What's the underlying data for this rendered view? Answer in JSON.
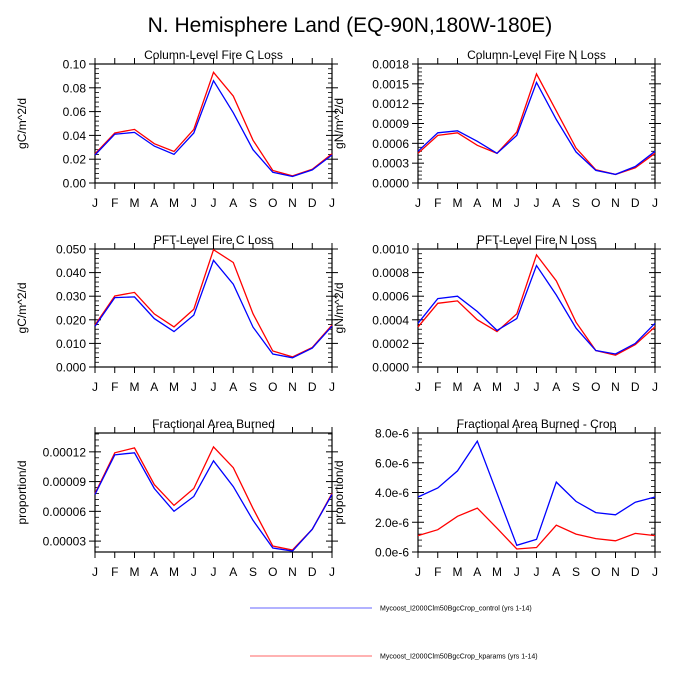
{
  "figure": {
    "title": "N. Hemisphere Land (EQ-90N,180W-180E)"
  },
  "legend": {
    "placement": "bottom-center",
    "entries": [
      {
        "label": "Mycoost_I2000Clm50BgcCrop_control (yrs 1-14)",
        "color": "#0000ff"
      },
      {
        "label": "Mycoost_I2000Clm50BgcCrop_kparams (yrs 1-14)",
        "color": "#ff0000"
      }
    ]
  },
  "chart_data": [
    {
      "type": "line",
      "title": "Column-Level Fire C Loss",
      "xlabel": "",
      "ylabel": "gC/m^2/d",
      "categories": [
        "J",
        "F",
        "M",
        "A",
        "M",
        "J",
        "J",
        "A",
        "S",
        "O",
        "N",
        "D",
        "J"
      ],
      "ylim": [
        0,
        0.1
      ],
      "yticks": [
        0,
        0.02,
        0.04,
        0.06,
        0.08,
        0.1
      ],
      "ytick_labels": [
        "0.00",
        "0.02",
        "0.04",
        "0.06",
        "0.08",
        "0.10"
      ],
      "grid": false,
      "series": [
        {
          "name": "Mycoost_I2000Clm50BgcCrop_control (yrs 1-14)",
          "color": "#0000ff",
          "values": [
            0.0235,
            0.041,
            0.0425,
            0.031,
            0.024,
            0.042,
            0.086,
            0.059,
            0.028,
            0.009,
            0.0055,
            0.011,
            0.0235
          ]
        },
        {
          "name": "Mycoost_I2000Clm50BgcCrop_kparams (yrs 1-14)",
          "color": "#ff0000",
          "values": [
            0.0245,
            0.042,
            0.045,
            0.033,
            0.0265,
            0.045,
            0.093,
            0.073,
            0.036,
            0.0105,
            0.006,
            0.0115,
            0.0245
          ]
        }
      ]
    },
    {
      "type": "line",
      "title": "Column-Level Fire N Loss",
      "xlabel": "",
      "ylabel": "gN/m^2/d",
      "categories": [
        "J",
        "F",
        "M",
        "A",
        "M",
        "J",
        "J",
        "A",
        "S",
        "O",
        "N",
        "D",
        "J"
      ],
      "ylim": [
        0,
        0.0018
      ],
      "yticks": [
        0,
        0.0003,
        0.0006,
        0.0009,
        0.0012,
        0.0015,
        0.0018
      ],
      "ytick_labels": [
        "0.0000",
        "0.0003",
        "0.0006",
        "0.0009",
        "0.0012",
        "0.0015",
        "0.0018"
      ],
      "grid": false,
      "series": [
        {
          "name": "Mycoost_I2000Clm50BgcCrop_control (yrs 1-14)",
          "color": "#0000ff",
          "values": [
            0.00048,
            0.00076,
            0.00079,
            0.00063,
            0.00045,
            0.00072,
            0.00152,
            0.00096,
            0.00047,
            0.00019,
            0.00013,
            0.00025,
            0.00048
          ]
        },
        {
          "name": "Mycoost_I2000Clm50BgcCrop_kparams (yrs 1-14)",
          "color": "#ff0000",
          "values": [
            0.00045,
            0.00072,
            0.00076,
            0.00057,
            0.00045,
            0.00077,
            0.00165,
            0.00109,
            0.00053,
            0.0002,
            0.00013,
            0.00023,
            0.00045
          ]
        }
      ]
    },
    {
      "type": "line",
      "title": "PFT-Level Fire C Loss",
      "xlabel": "",
      "ylabel": "gC/m^2/d",
      "categories": [
        "J",
        "F",
        "M",
        "A",
        "M",
        "J",
        "J",
        "A",
        "S",
        "O",
        "N",
        "D",
        "J"
      ],
      "ylim": [
        0,
        0.05
      ],
      "yticks": [
        0,
        0.01,
        0.02,
        0.03,
        0.04,
        0.05
      ],
      "ytick_labels": [
        "0.000",
        "0.010",
        "0.020",
        "0.030",
        "0.040",
        "0.050"
      ],
      "grid": false,
      "series": [
        {
          "name": "Mycoost_I2000Clm50BgcCrop_control (yrs 1-14)",
          "color": "#0000ff",
          "values": [
            0.0173,
            0.0294,
            0.0297,
            0.0205,
            0.015,
            0.022,
            0.0452,
            0.0351,
            0.0169,
            0.0055,
            0.0039,
            0.008,
            0.0173
          ]
        },
        {
          "name": "Mycoost_I2000Clm50BgcCrop_kparams (yrs 1-14)",
          "color": "#ff0000",
          "values": [
            0.0178,
            0.0301,
            0.0316,
            0.0225,
            0.017,
            0.0245,
            0.0497,
            0.0443,
            0.0226,
            0.0068,
            0.0043,
            0.0083,
            0.0178
          ]
        }
      ]
    },
    {
      "type": "line",
      "title": "PFT-Level Fire N Loss",
      "xlabel": "",
      "ylabel": "gN/m^2/d",
      "categories": [
        "J",
        "F",
        "M",
        "A",
        "M",
        "J",
        "J",
        "A",
        "S",
        "O",
        "N",
        "D",
        "J"
      ],
      "ylim": [
        0,
        0.001
      ],
      "yticks": [
        0,
        0.0002,
        0.0004,
        0.0006,
        0.0008,
        0.001
      ],
      "ytick_labels": [
        "0.0000",
        "0.0002",
        "0.0004",
        "0.0006",
        "0.0008",
        "0.0010"
      ],
      "grid": false,
      "series": [
        {
          "name": "Mycoost_I2000Clm50BgcCrop_control (yrs 1-14)",
          "color": "#0000ff",
          "values": [
            0.00037,
            0.00058,
            0.0006,
            0.00047,
            0.00031,
            0.00041,
            0.00086,
            0.00061,
            0.00033,
            0.00014,
            0.00011,
            0.0002,
            0.00037
          ]
        },
        {
          "name": "Mycoost_I2000Clm50BgcCrop_kparams (yrs 1-14)",
          "color": "#ff0000",
          "values": [
            0.00034,
            0.00054,
            0.00056,
            0.0004,
            0.0003,
            0.00045,
            0.00095,
            0.00073,
            0.00038,
            0.00014,
            0.0001,
            0.00019,
            0.00034
          ]
        }
      ]
    },
    {
      "type": "line",
      "title": "Fractional Area Burned",
      "xlabel": "",
      "ylabel": "proportion/d",
      "categories": [
        "J",
        "F",
        "M",
        "A",
        "M",
        "J",
        "J",
        "A",
        "S",
        "O",
        "N",
        "D",
        "J"
      ],
      "ylim": [
        1.9e-05,
        0.000139
      ],
      "yticks": [
        3e-05,
        6e-05,
        9e-05,
        0.00012
      ],
      "ytick_labels": [
        "0.00003",
        "0.00006",
        "0.00009",
        "0.00012"
      ],
      "grid": false,
      "series": [
        {
          "name": "Mycoost_I2000Clm50BgcCrop_control (yrs 1-14)",
          "color": "#0000ff",
          "values": [
            7.7e-05,
            0.000117,
            0.000119,
            8.3e-05,
            6e-05,
            7.5e-05,
            0.000111,
            8.5e-05,
            5.1e-05,
            2.3e-05,
            2e-05,
            4.2e-05,
            7.7e-05
          ]
        },
        {
          "name": "Mycoost_I2000Clm50BgcCrop_kparams (yrs 1-14)",
          "color": "#ff0000",
          "values": [
            7.8e-05,
            0.000119,
            0.000124,
            8.7e-05,
            6.6e-05,
            8.3e-05,
            0.000125,
            0.000104,
            6.3e-05,
            2.5e-05,
            2.1e-05,
            4.2e-05,
            7.8e-05
          ]
        }
      ]
    },
    {
      "type": "line",
      "title": "Fractional Area Burned - Crop",
      "xlabel": "",
      "ylabel": "proportion/d",
      "categories": [
        "J",
        "F",
        "M",
        "A",
        "M",
        "J",
        "J",
        "A",
        "S",
        "O",
        "N",
        "D",
        "J"
      ],
      "ylim": [
        0,
        8e-06
      ],
      "yticks": [
        0,
        2e-06,
        4e-06,
        6e-06,
        8e-06
      ],
      "ytick_labels": [
        "0.0e-6",
        "2.0e-6",
        "4.0e-6",
        "6.0e-6",
        "8.0e-6"
      ],
      "grid": false,
      "series": [
        {
          "name": "Mycoost_I2000Clm50BgcCrop_control (yrs 1-14)",
          "color": "#0000ff",
          "values": [
            3.7e-06,
            4.3e-06,
            5.45e-06,
            7.45e-06,
            3.95e-06,
            4.5e-07,
            8.5e-07,
            4.7e-06,
            3.4e-06,
            2.65e-06,
            2.5e-06,
            3.35e-06,
            3.7e-06
          ]
        },
        {
          "name": "Mycoost_I2000Clm50BgcCrop_kparams (yrs 1-14)",
          "color": "#ff0000",
          "values": [
            1.1e-06,
            1.5e-06,
            2.4e-06,
            2.95e-06,
            1.6e-06,
            2e-07,
            3e-07,
            1.8e-06,
            1.2e-06,
            9e-07,
            7.5e-07,
            1.25e-06,
            1.1e-06
          ]
        }
      ]
    }
  ]
}
